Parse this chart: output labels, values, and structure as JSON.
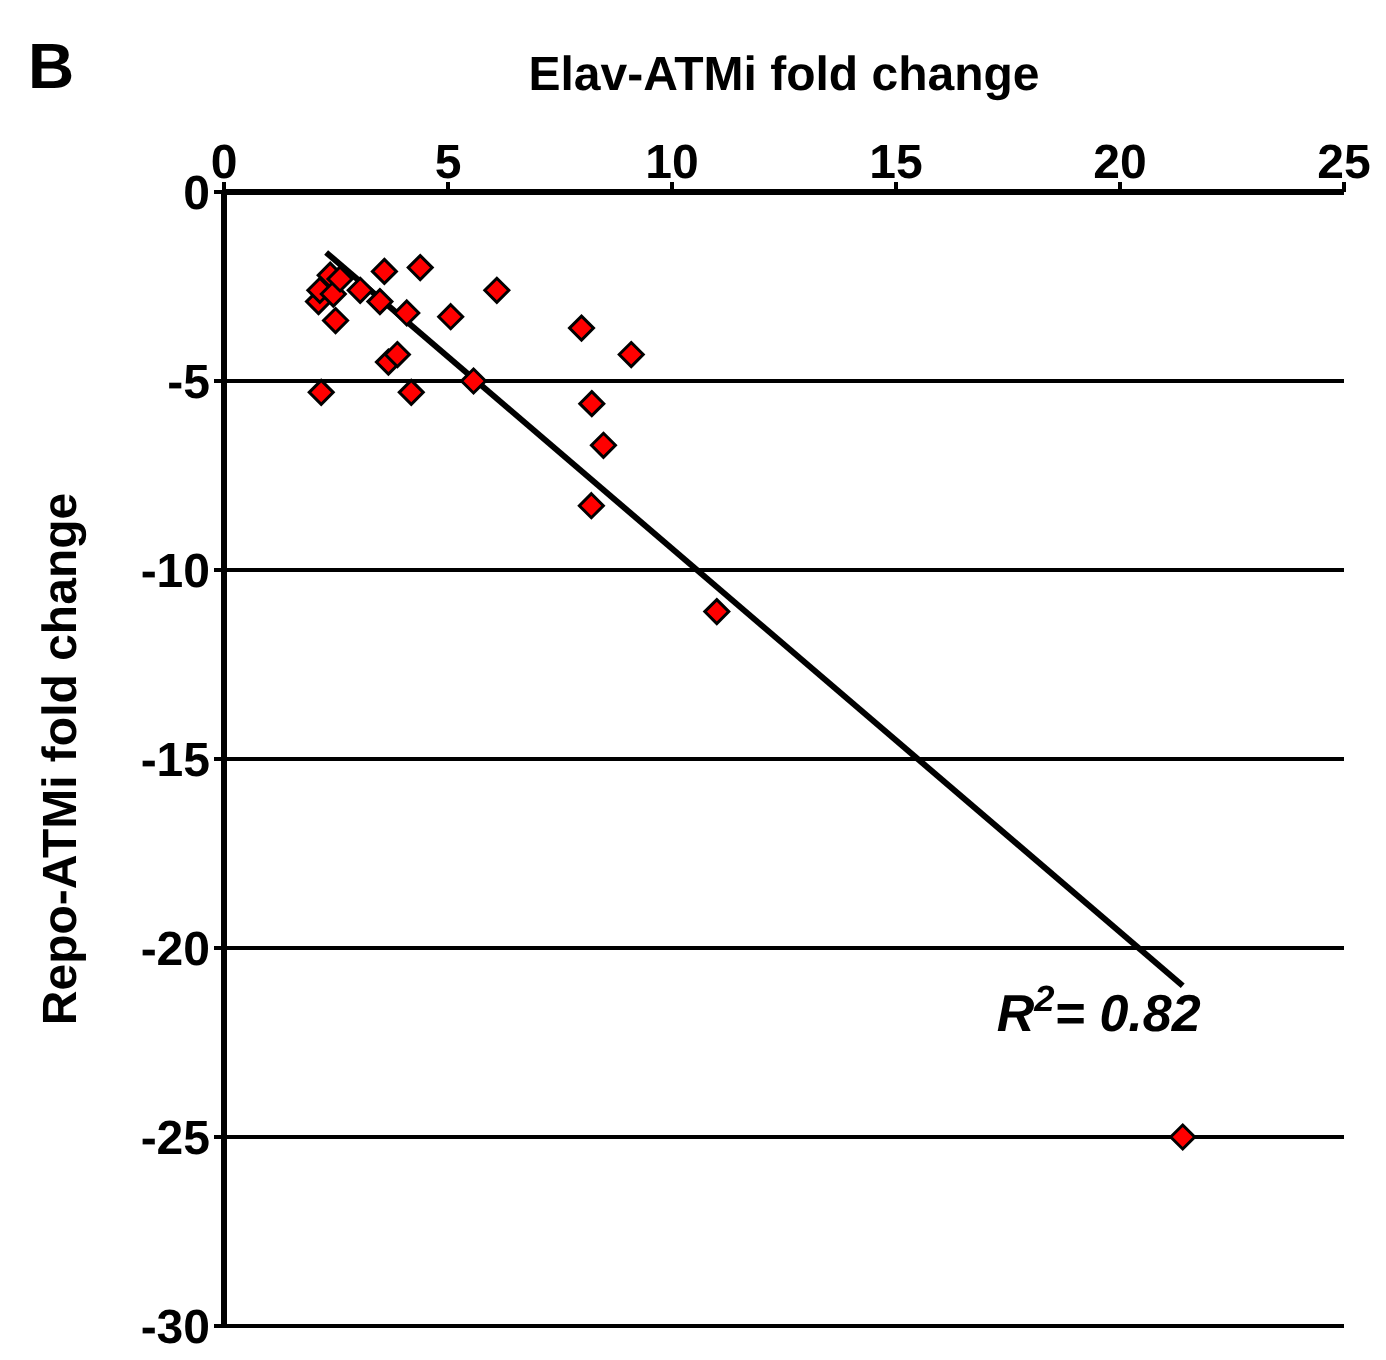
{
  "chart_data": {
    "type": "scatter",
    "xlabel": "Elav-ATMi fold change",
    "ylabel": "Repo-ATMi fold change",
    "annotations": [
      "B",
      "R$^{2}$= 0.82"
    ],
    "xlim": [
      0,
      25
    ],
    "xticks": [
      0,
      5,
      10,
      15,
      20,
      25
    ],
    "ylim": [
      -30,
      0
    ],
    "yticks": [
      0,
      -5,
      -10,
      -15,
      -20,
      -25,
      -30
    ],
    "grid": "y",
    "legend": false,
    "series": [
      {
        "marker": "diamond",
        "color": "#ff0000",
        "x": [
          2.17,
          4.18,
          5.57,
          3.67,
          3.87,
          2.49,
          2.11,
          2.14,
          2.37,
          2.44,
          2.59,
          3.04,
          3.48,
          3.58,
          4.38,
          4.08,
          5.06,
          6.09,
          7.98,
          9.09,
          8.21,
          8.47,
          8.2,
          11.0,
          21.4
        ],
        "values": [
          -5.3,
          -5.3,
          -5.0,
          -4.5,
          -4.3,
          -3.4,
          -2.9,
          -2.6,
          -2.2,
          -2.7,
          -2.3,
          -2.6,
          -2.9,
          -2.1,
          -2.0,
          -3.2,
          -3.3,
          -2.6,
          -3.6,
          -4.3,
          -5.6,
          -6.7,
          -8.3,
          -11.1,
          -25.0
        ]
      },
      {
        "type": "line",
        "marker": "none",
        "color": "#000000",
        "x": [
          2.28,
          21.4
        ],
        "values": [
          -1.6,
          -21.0
        ]
      }
    ]
  }
}
